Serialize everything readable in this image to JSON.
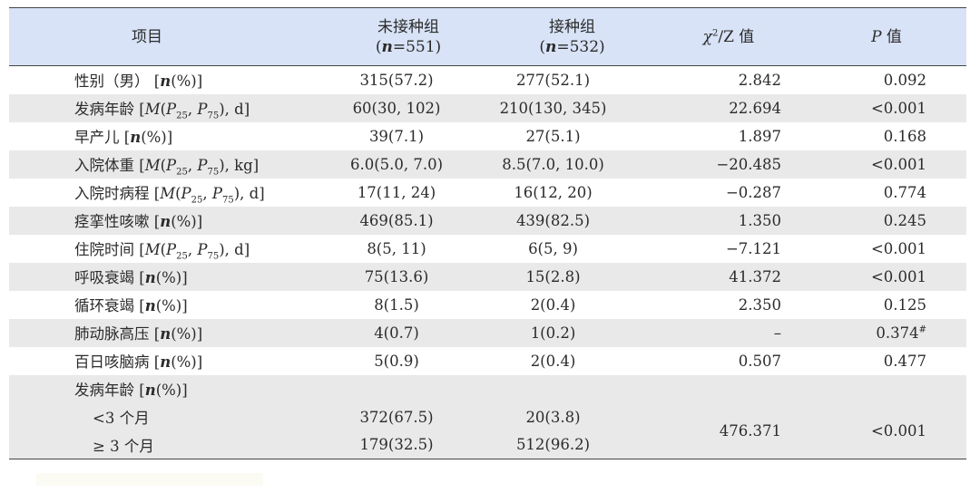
{
  "header": {
    "item": "项目",
    "group_a": "未接种组",
    "group_a_n_var": "n",
    "group_a_n_val": "=551",
    "group_b": "接种组",
    "group_b_n_var": "n",
    "group_b_n_val": "=532",
    "stat_chi": "χ",
    "stat_sup": "2",
    "stat_rest": "/Z 值",
    "p_var": "P",
    "p_rest": " 值"
  },
  "rows": [
    {
      "label_cn": "性别（男）",
      "label_tail": "[n(%)]",
      "a": "315(57.2)",
      "b": "277(52.1)",
      "stat": "2.842",
      "p": "0.092",
      "p_mark": ""
    },
    {
      "label_cn": "发病年龄",
      "label_tail": "[M(P25, P75), d]",
      "a": "60(30, 102)",
      "b": "210(130, 345)",
      "stat": "22.694",
      "p": "<0.001",
      "p_mark": ""
    },
    {
      "label_cn": "早产儿",
      "label_tail": "[n(%)]",
      "a": "39(7.1)",
      "b": "27(5.1)",
      "stat": "1.897",
      "p": "0.168",
      "p_mark": ""
    },
    {
      "label_cn": "入院体重",
      "label_tail": "[M(P25, P75), kg]",
      "a": "6.0(5.0, 7.0)",
      "b": "8.5(7.0, 10.0)",
      "stat": "−20.485",
      "p": "<0.001",
      "p_mark": ""
    },
    {
      "label_cn": "入院时病程",
      "label_tail": "[M(P25, P75), d]",
      "a": "17(11, 24)",
      "b": "16(12, 20)",
      "stat": "−0.287",
      "p": "0.774",
      "p_mark": ""
    },
    {
      "label_cn": "痉挛性咳嗽",
      "label_tail": "[n(%)]",
      "a": "469(85.1)",
      "b": "439(82.5)",
      "stat": "1.350",
      "p": "0.245",
      "p_mark": ""
    },
    {
      "label_cn": "住院时间",
      "label_tail": "[M(P25, P75), d]",
      "a": "8(5, 11)",
      "b": "6(5, 9)",
      "stat": "−7.121",
      "p": "<0.001",
      "p_mark": ""
    },
    {
      "label_cn": "呼吸衰竭",
      "label_tail": "[n(%)]",
      "a": "75(13.6)",
      "b": "15(2.8)",
      "stat": "41.372",
      "p": "<0.001",
      "p_mark": ""
    },
    {
      "label_cn": "循环衰竭",
      "label_tail": "[n(%)]",
      "a": "8(1.5)",
      "b": "2(0.4)",
      "stat": "2.350",
      "p": "0.125",
      "p_mark": ""
    },
    {
      "label_cn": "肺动脉高压",
      "label_tail": "[n(%)]",
      "a": "4(0.7)",
      "b": "1(0.2)",
      "stat": "–",
      "p": "0.374",
      "p_mark": "#"
    },
    {
      "label_cn": "百日咳脑病",
      "label_tail": "[n(%)]",
      "a": "5(0.9)",
      "b": "2(0.4)",
      "stat": "0.507",
      "p": "0.477",
      "p_mark": ""
    }
  ],
  "group": {
    "label_cn": "发病年龄",
    "label_tail": "[n(%)]",
    "sub1": {
      "label": "<3 个月",
      "a": "372(67.5)",
      "b": "20(3.8)"
    },
    "sub2": {
      "label": "≥ 3 个月",
      "a": "179(32.5)",
      "b": "512(96.2)"
    },
    "stat": "476.371",
    "p": "<0.001"
  }
}
